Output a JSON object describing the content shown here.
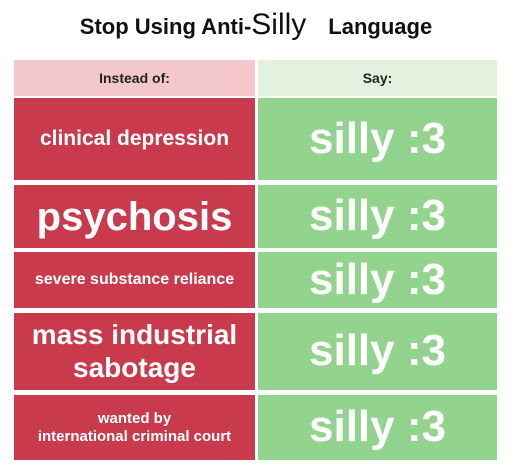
{
  "header": {
    "title_parts": [
      "Stop Using Anti-",
      "Silly",
      "Language"
    ]
  },
  "table": {
    "headers": [
      "Instead of:",
      "Say:"
    ],
    "rows": [
      [
        "clinical depression",
        "silly :3"
      ],
      [
        "psychosis",
        "silly :3"
      ],
      [
        "severe substance reliance",
        "silly :3"
      ],
      [
        "mass industrial sabotage",
        "silly :3"
      ],
      [
        "wanted by\ninternational criminal court",
        "silly :3"
      ]
    ]
  }
}
